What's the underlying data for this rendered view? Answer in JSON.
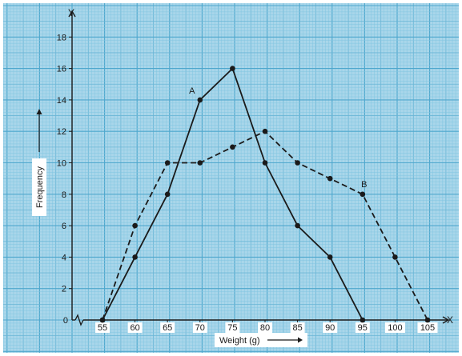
{
  "chart_data": {
    "type": "line",
    "xlabel": "Weight (g)",
    "ylabel": "Frequency",
    "x_axis_letter": "X",
    "y_axis_letter": "Y",
    "origin_label": "0",
    "xlim": [
      50,
      107
    ],
    "ylim": [
      0,
      19
    ],
    "x_ticks": [
      55,
      60,
      65,
      70,
      75,
      80,
      85,
      90,
      95,
      100,
      105
    ],
    "y_ticks": [
      0,
      2,
      4,
      6,
      8,
      10,
      12,
      14,
      16,
      18
    ],
    "axis_break": true,
    "grid": true,
    "colors": {
      "background": "#a9d6ea",
      "grid_fine": "#82c6e1",
      "grid_mid": "#6ab6d6",
      "grid_major": "#4ea7cd",
      "line": "#1a1a1a"
    },
    "series": [
      {
        "name": "A",
        "style": "solid",
        "x": [
          55,
          60,
          65,
          70,
          75,
          80,
          85,
          90,
          95
        ],
        "y": [
          0,
          4,
          8,
          14,
          16,
          10,
          6,
          4,
          0
        ]
      },
      {
        "name": "B",
        "style": "dashed",
        "x": [
          55,
          60,
          65,
          70,
          75,
          80,
          85,
          90,
          95,
          100,
          105
        ],
        "y": [
          0,
          6,
          10,
          10,
          11,
          12,
          10,
          9,
          8,
          4,
          0
        ]
      }
    ]
  }
}
